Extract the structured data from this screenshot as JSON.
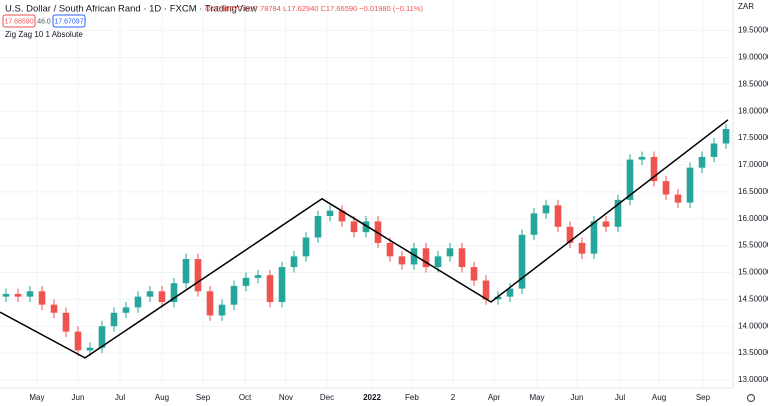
{
  "chart_data": {
    "type": "candlestick",
    "title": "U.S. Dollar / South African Rand · 1D · FXCM · TradingView",
    "ohlc_label": "O17.68570 H17.78784 L17.62940 C17.66590 −0.01980 (−0.11%)",
    "sell_price": "17.66590",
    "spread": "46.0",
    "buy_price": "17.67097",
    "currency": "ZAR",
    "up_color": "#26a69a",
    "down_color": "#ef5350",
    "grid": true,
    "x": [
      0,
      1,
      2,
      3,
      4,
      5,
      6,
      7,
      8,
      9,
      10,
      11,
      12,
      13,
      14,
      15,
      16,
      17,
      18,
      19,
      20,
      21,
      22,
      23,
      24,
      25,
      26,
      27,
      28,
      29,
      30,
      31,
      32,
      33,
      34,
      35,
      36,
      37,
      38,
      39,
      40,
      41,
      42,
      43,
      44,
      45,
      46,
      47,
      48,
      49,
      50,
      51,
      52,
      53,
      54,
      55,
      56,
      57,
      58,
      59,
      60
    ],
    "open": [
      14.55,
      14.6,
      14.55,
      14.65,
      14.4,
      14.25,
      13.9,
      13.55,
      13.6,
      14.0,
      14.25,
      14.35,
      14.55,
      14.65,
      14.45,
      14.8,
      15.25,
      14.65,
      14.2,
      14.4,
      14.75,
      14.9,
      14.95,
      14.45,
      15.1,
      15.3,
      15.65,
      16.05,
      16.15,
      15.95,
      15.75,
      15.95,
      15.55,
      15.3,
      15.15,
      15.45,
      15.1,
      15.3,
      15.45,
      15.1,
      14.85,
      14.5,
      14.55,
      14.7,
      15.7,
      16.1,
      16.25,
      15.85,
      15.55,
      15.35,
      15.95,
      15.85,
      16.35,
      17.1,
      17.15,
      16.7,
      16.45,
      16.3,
      16.95,
      17.15,
      17.4
    ],
    "high": [
      14.7,
      14.7,
      14.75,
      14.75,
      14.5,
      14.35,
      14.0,
      13.7,
      14.1,
      14.35,
      14.45,
      14.65,
      14.75,
      14.75,
      14.9,
      15.35,
      15.35,
      14.75,
      14.5,
      14.85,
      15.0,
      15.05,
      15.05,
      15.2,
      15.4,
      15.75,
      16.15,
      16.25,
      16.25,
      16.05,
      16.05,
      16.05,
      15.65,
      15.4,
      15.55,
      15.55,
      15.4,
      15.55,
      15.55,
      15.2,
      14.95,
      14.65,
      14.8,
      15.8,
      16.2,
      16.35,
      16.35,
      15.95,
      15.65,
      16.05,
      16.05,
      16.45,
      17.2,
      17.25,
      17.25,
      16.8,
      16.55,
      17.05,
      17.25,
      17.5,
      17.77
    ],
    "low": [
      14.45,
      14.45,
      14.45,
      14.3,
      14.15,
      13.8,
      13.45,
      13.45,
      13.5,
      13.9,
      14.15,
      14.25,
      14.45,
      14.35,
      14.35,
      14.7,
      14.55,
      14.1,
      14.1,
      14.3,
      14.65,
      14.8,
      14.35,
      14.35,
      15.0,
      15.2,
      15.55,
      15.95,
      15.85,
      15.65,
      15.65,
      15.45,
      15.2,
      15.05,
      15.05,
      15.0,
      15.0,
      15.2,
      15.0,
      14.75,
      14.4,
      14.4,
      14.45,
      14.6,
      15.6,
      16.0,
      15.75,
      15.45,
      15.25,
      15.25,
      15.75,
      15.75,
      16.25,
      17.0,
      16.6,
      16.35,
      16.2,
      16.2,
      16.85,
      17.05,
      17.3
    ],
    "close": [
      14.6,
      14.55,
      14.65,
      14.4,
      14.25,
      13.9,
      13.55,
      13.6,
      14.0,
      14.25,
      14.35,
      14.55,
      14.65,
      14.45,
      14.8,
      15.25,
      14.65,
      14.2,
      14.4,
      14.75,
      14.9,
      14.95,
      14.45,
      15.1,
      15.3,
      15.65,
      16.05,
      16.15,
      15.95,
      15.75,
      15.95,
      15.55,
      15.3,
      15.15,
      15.45,
      15.1,
      15.3,
      15.45,
      15.1,
      14.85,
      14.5,
      14.55,
      14.7,
      15.7,
      16.1,
      16.25,
      15.85,
      15.55,
      15.35,
      15.95,
      15.85,
      16.35,
      17.1,
      17.15,
      16.7,
      16.45,
      16.3,
      16.95,
      17.15,
      17.4,
      17.67
    ],
    "indicator": {
      "name": "Zig Zag 10 1 Absolute",
      "color": "#000000",
      "x": [
        -0.5,
        6.58,
        26.33,
        40.42,
        60.17
      ],
      "values": [
        14.26,
        13.41,
        16.37,
        14.45,
        17.84
      ]
    },
    "xlim": [
      -0.5,
      60.5
    ],
    "ylim": [
      12.85,
      20.07
    ],
    "yticks": [
      {
        "value": 13.0,
        "label": "13.00000"
      },
      {
        "value": 13.5,
        "label": "13.50000"
      },
      {
        "value": 14.0,
        "label": "14.00000"
      },
      {
        "value": 14.5,
        "label": "14.50000"
      },
      {
        "value": 15.0,
        "label": "15.00000"
      },
      {
        "value": 15.5,
        "label": "15.50000"
      },
      {
        "value": 16.0,
        "label": "16.00000"
      },
      {
        "value": 16.5,
        "label": "16.50000"
      },
      {
        "value": 17.0,
        "label": "17.00000"
      },
      {
        "value": 17.5,
        "label": "17.50000"
      },
      {
        "value": 18.0,
        "label": "18.00000"
      },
      {
        "value": 18.5,
        "label": "18.50000"
      },
      {
        "value": 19.0,
        "label": "19.00000"
      },
      {
        "value": 19.5,
        "label": "19.50000"
      }
    ],
    "xticks": [
      {
        "value": 2.58,
        "label": "May"
      },
      {
        "value": 6.0,
        "label": "Jun"
      },
      {
        "value": 9.5,
        "label": "Jul"
      },
      {
        "value": 13.0,
        "label": "Aug"
      },
      {
        "value": 16.42,
        "label": "Sep"
      },
      {
        "value": 19.92,
        "label": "Oct"
      },
      {
        "value": 23.33,
        "label": "Nov"
      },
      {
        "value": 26.75,
        "label": "Dec"
      },
      {
        "value": 30.5,
        "label": "2022"
      },
      {
        "value": 33.83,
        "label": "Feb"
      },
      {
        "value": 37.25,
        "label": "2"
      },
      {
        "value": 40.67,
        "label": "Apr"
      },
      {
        "value": 44.25,
        "label": "May"
      },
      {
        "value": 47.58,
        "label": "Jun"
      },
      {
        "value": 51.17,
        "label": "Jul"
      },
      {
        "value": 54.42,
        "label": "Aug"
      },
      {
        "value": 58.08,
        "label": "Sep"
      }
    ]
  }
}
